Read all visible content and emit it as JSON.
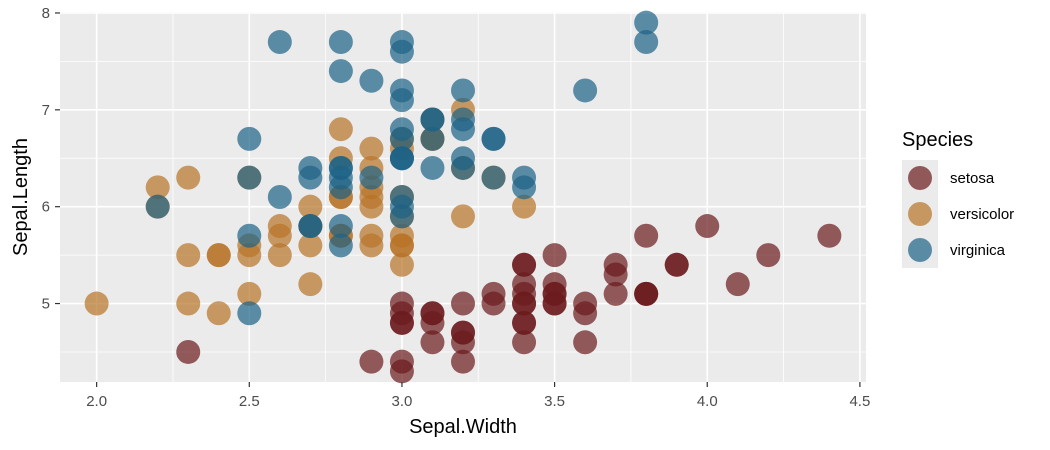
{
  "chart_data": {
    "type": "scatter",
    "title": "",
    "xlabel": "Sepal.Width",
    "ylabel": "Sepal.Length",
    "xlim": [
      1.88,
      4.52
    ],
    "ylim": [
      4.19,
      8.01
    ],
    "x_ticks": [
      2.0,
      2.5,
      3.0,
      3.5,
      4.0,
      4.5
    ],
    "x_tick_labels": [
      "2.0",
      "2.5",
      "3.0",
      "3.5",
      "4.0",
      "4.5"
    ],
    "y_ticks": [
      5,
      6,
      7,
      8
    ],
    "y_tick_labels": [
      "5",
      "6",
      "7",
      "8"
    ],
    "grid": true,
    "legend": {
      "title": "Species",
      "position": "right"
    },
    "series": [
      {
        "name": "setosa",
        "color": "#6b1a1c",
        "points": [
          [
            3.5,
            5.1
          ],
          [
            3.0,
            4.9
          ],
          [
            3.2,
            4.7
          ],
          [
            3.1,
            4.6
          ],
          [
            3.6,
            5.0
          ],
          [
            3.9,
            5.4
          ],
          [
            3.4,
            4.6
          ],
          [
            3.4,
            5.0
          ],
          [
            2.9,
            4.4
          ],
          [
            3.1,
            4.9
          ],
          [
            3.7,
            5.4
          ],
          [
            3.4,
            4.8
          ],
          [
            3.0,
            4.8
          ],
          [
            3.0,
            4.3
          ],
          [
            4.0,
            5.8
          ],
          [
            4.4,
            5.7
          ],
          [
            3.9,
            5.4
          ],
          [
            3.5,
            5.1
          ],
          [
            3.8,
            5.7
          ],
          [
            3.8,
            5.1
          ],
          [
            3.4,
            5.4
          ],
          [
            3.7,
            5.1
          ],
          [
            3.6,
            4.6
          ],
          [
            3.3,
            5.1
          ],
          [
            3.4,
            4.8
          ],
          [
            3.0,
            5.0
          ],
          [
            3.4,
            5.0
          ],
          [
            3.5,
            5.2
          ],
          [
            3.4,
            5.2
          ],
          [
            3.2,
            4.7
          ],
          [
            3.1,
            4.8
          ],
          [
            3.4,
            5.4
          ],
          [
            4.1,
            5.2
          ],
          [
            4.2,
            5.5
          ],
          [
            3.1,
            4.9
          ],
          [
            3.2,
            5.0
          ],
          [
            3.5,
            5.5
          ],
          [
            3.6,
            4.9
          ],
          [
            3.0,
            4.4
          ],
          [
            3.4,
            5.1
          ],
          [
            3.5,
            5.0
          ],
          [
            2.3,
            4.5
          ],
          [
            3.2,
            4.4
          ],
          [
            3.5,
            5.0
          ],
          [
            3.8,
            5.1
          ],
          [
            3.0,
            4.8
          ],
          [
            3.8,
            5.1
          ],
          [
            3.2,
            4.6
          ],
          [
            3.7,
            5.3
          ],
          [
            3.3,
            5.0
          ]
        ]
      },
      {
        "name": "versicolor",
        "color": "#b87326",
        "points": [
          [
            3.2,
            7.0
          ],
          [
            3.2,
            6.4
          ],
          [
            3.1,
            6.9
          ],
          [
            2.3,
            5.5
          ],
          [
            2.8,
            6.5
          ],
          [
            2.8,
            5.7
          ],
          [
            3.3,
            6.3
          ],
          [
            2.4,
            4.9
          ],
          [
            2.9,
            6.6
          ],
          [
            2.7,
            5.2
          ],
          [
            2.0,
            5.0
          ],
          [
            3.0,
            5.9
          ],
          [
            2.2,
            6.0
          ],
          [
            2.9,
            6.1
          ],
          [
            2.9,
            5.6
          ],
          [
            3.1,
            6.7
          ],
          [
            3.0,
            5.6
          ],
          [
            2.7,
            5.8
          ],
          [
            2.2,
            6.2
          ],
          [
            2.5,
            5.6
          ],
          [
            3.2,
            5.9
          ],
          [
            2.8,
            6.1
          ],
          [
            2.5,
            6.3
          ],
          [
            2.8,
            6.1
          ],
          [
            2.9,
            6.4
          ],
          [
            3.0,
            6.6
          ],
          [
            2.8,
            6.8
          ],
          [
            3.0,
            6.7
          ],
          [
            2.9,
            6.0
          ],
          [
            2.6,
            5.7
          ],
          [
            2.4,
            5.5
          ],
          [
            2.4,
            5.5
          ],
          [
            2.7,
            5.8
          ],
          [
            2.7,
            6.0
          ],
          [
            3.0,
            5.4
          ],
          [
            3.4,
            6.0
          ],
          [
            3.1,
            6.7
          ],
          [
            2.3,
            6.3
          ],
          [
            3.0,
            5.6
          ],
          [
            2.5,
            5.5
          ],
          [
            2.6,
            5.5
          ],
          [
            3.0,
            6.1
          ],
          [
            2.6,
            5.8
          ],
          [
            2.3,
            5.0
          ],
          [
            2.7,
            5.6
          ],
          [
            3.0,
            5.7
          ],
          [
            2.9,
            5.7
          ],
          [
            2.9,
            6.2
          ],
          [
            2.5,
            5.1
          ],
          [
            2.8,
            5.7
          ]
        ]
      },
      {
        "name": "virginica",
        "color": "#1d6286",
        "points": [
          [
            3.3,
            6.3
          ],
          [
            2.7,
            5.8
          ],
          [
            3.0,
            7.1
          ],
          [
            2.9,
            6.3
          ],
          [
            3.0,
            6.5
          ],
          [
            3.0,
            7.6
          ],
          [
            2.5,
            4.9
          ],
          [
            2.9,
            7.3
          ],
          [
            2.5,
            6.7
          ],
          [
            3.6,
            7.2
          ],
          [
            3.2,
            6.5
          ],
          [
            2.7,
            6.4
          ],
          [
            3.0,
            6.8
          ],
          [
            2.5,
            5.7
          ],
          [
            2.8,
            5.8
          ],
          [
            3.2,
            6.4
          ],
          [
            3.0,
            6.5
          ],
          [
            3.8,
            7.7
          ],
          [
            2.6,
            7.7
          ],
          [
            2.2,
            6.0
          ],
          [
            3.2,
            6.9
          ],
          [
            2.8,
            5.6
          ],
          [
            2.8,
            7.7
          ],
          [
            2.7,
            6.3
          ],
          [
            3.3,
            6.7
          ],
          [
            3.2,
            7.2
          ],
          [
            2.8,
            6.2
          ],
          [
            3.0,
            6.1
          ],
          [
            2.8,
            6.4
          ],
          [
            3.0,
            7.2
          ],
          [
            2.8,
            7.4
          ],
          [
            3.8,
            7.9
          ],
          [
            2.8,
            6.4
          ],
          [
            2.8,
            6.3
          ],
          [
            2.6,
            6.1
          ],
          [
            3.0,
            7.7
          ],
          [
            3.4,
            6.3
          ],
          [
            3.1,
            6.4
          ],
          [
            3.0,
            6.0
          ],
          [
            3.1,
            6.9
          ],
          [
            3.1,
            6.7
          ],
          [
            3.1,
            6.9
          ],
          [
            2.7,
            5.8
          ],
          [
            3.2,
            6.8
          ],
          [
            3.3,
            6.7
          ],
          [
            3.0,
            6.7
          ],
          [
            2.5,
            6.3
          ],
          [
            3.0,
            6.5
          ],
          [
            3.4,
            6.2
          ],
          [
            3.0,
            5.9
          ]
        ]
      }
    ]
  }
}
